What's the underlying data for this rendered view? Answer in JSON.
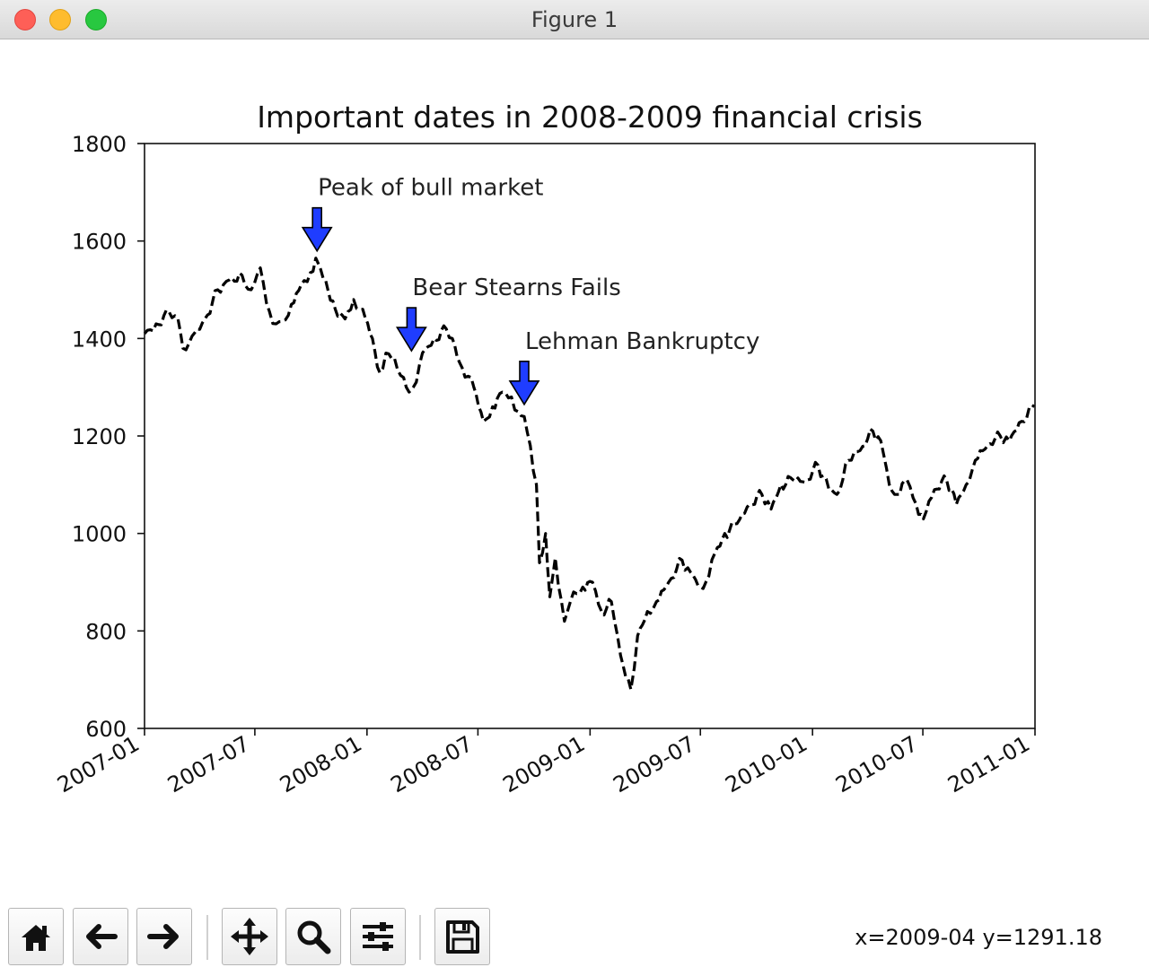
{
  "window": {
    "title": "Figure 1"
  },
  "chart_data": {
    "type": "line",
    "title": "Important dates in 2008-2009 financial crisis",
    "xlabel": "",
    "ylabel": "",
    "xlim": [
      "2007-01",
      "2011-01"
    ],
    "ylim": [
      600,
      1800
    ],
    "yticks": [
      600,
      800,
      1000,
      1200,
      1400,
      1600,
      1800
    ],
    "xticks": [
      "2007-01",
      "2007-07",
      "2008-01",
      "2008-07",
      "2009-01",
      "2009-07",
      "2010-01",
      "2010-07",
      "2011-01"
    ],
    "line_style": "dashed",
    "line_color": "#000000",
    "grid": false,
    "series": [
      {
        "x": [
          "2007-01-01",
          "2007-01-20",
          "2007-02-10",
          "2007-02-25",
          "2007-03-05",
          "2007-03-20",
          "2007-04-10",
          "2007-05-01",
          "2007-05-20",
          "2007-06-10",
          "2007-06-25",
          "2007-07-10",
          "2007-07-25",
          "2007-08-05",
          "2007-08-15",
          "2007-08-30",
          "2007-09-15",
          "2007-09-30",
          "2007-10-09",
          "2007-10-25",
          "2007-11-10",
          "2007-11-26",
          "2007-12-10",
          "2007-12-25",
          "2008-01-10",
          "2008-01-22",
          "2008-02-01",
          "2008-02-15",
          "2008-03-01",
          "2008-03-10",
          "2008-03-17",
          "2008-04-01",
          "2008-04-20",
          "2008-05-10",
          "2008-05-20",
          "2008-06-05",
          "2008-06-20",
          "2008-07-10",
          "2008-07-25",
          "2008-08-10",
          "2008-08-25",
          "2008-09-05",
          "2008-09-15",
          "2008-09-25",
          "2008-10-05",
          "2008-10-10",
          "2008-10-20",
          "2008-10-27",
          "2008-11-05",
          "2008-11-20",
          "2008-12-05",
          "2008-12-20",
          "2009-01-05",
          "2009-01-20",
          "2009-02-05",
          "2009-02-20",
          "2009-03-09",
          "2009-03-20",
          "2009-04-05",
          "2009-04-20",
          "2009-05-10",
          "2009-06-01",
          "2009-06-15",
          "2009-07-01",
          "2009-07-10",
          "2009-07-25",
          "2009-08-10",
          "2009-08-30",
          "2009-09-20",
          "2009-10-10",
          "2009-10-25",
          "2009-11-10",
          "2009-11-30",
          "2009-12-20",
          "2010-01-10",
          "2010-01-28",
          "2010-02-10",
          "2010-03-01",
          "2010-03-20",
          "2010-04-10",
          "2010-04-23",
          "2010-05-07",
          "2010-05-20",
          "2010-06-05",
          "2010-06-20",
          "2010-07-02",
          "2010-07-20",
          "2010-08-09",
          "2010-08-25",
          "2010-09-10",
          "2010-09-25",
          "2010-10-15",
          "2010-11-05",
          "2010-11-20",
          "2010-12-10",
          "2010-12-31"
        ],
        "values": [
          1410,
          1430,
          1455,
          1440,
          1380,
          1405,
          1440,
          1500,
          1520,
          1530,
          1500,
          1545,
          1455,
          1430,
          1435,
          1470,
          1510,
          1535,
          1565,
          1520,
          1460,
          1440,
          1480,
          1460,
          1400,
          1330,
          1370,
          1360,
          1320,
          1290,
          1300,
          1370,
          1400,
          1420,
          1400,
          1340,
          1320,
          1230,
          1260,
          1290,
          1280,
          1250,
          1240,
          1180,
          1100,
          940,
          1000,
          870,
          950,
          820,
          880,
          890,
          900,
          840,
          860,
          750,
          680,
          790,
          840,
          860,
          900,
          945,
          920,
          890,
          900,
          960,
          1000,
          1020,
          1060,
          1080,
          1050,
          1100,
          1110,
          1105,
          1140,
          1090,
          1080,
          1150,
          1170,
          1210,
          1190,
          1100,
          1080,
          1110,
          1060,
          1030,
          1090,
          1110,
          1060,
          1100,
          1150,
          1180,
          1200,
          1190,
          1230,
          1260
        ]
      }
    ],
    "annotations": [
      {
        "text": "Peak of bull market",
        "x": "2007-10-11",
        "y": 1565
      },
      {
        "text": "Bear Stearns Fails",
        "x": "2008-03-14",
        "y": 1360
      },
      {
        "text": "Lehman Bankruptcy",
        "x": "2008-09-15",
        "y": 1250
      }
    ],
    "arrow_color": "#1f3dff"
  },
  "toolbar": {
    "buttons": [
      {
        "name": "home-button",
        "icon": "home-icon"
      },
      {
        "name": "back-button",
        "icon": "arrow-left-icon"
      },
      {
        "name": "forward-button",
        "icon": "arrow-right-icon"
      },
      {
        "name": "pan-button",
        "icon": "move-icon"
      },
      {
        "name": "zoom-button",
        "icon": "magnifier-icon"
      },
      {
        "name": "configure-subplots-button",
        "icon": "sliders-icon"
      },
      {
        "name": "save-button",
        "icon": "floppy-disk-icon"
      }
    ],
    "coords": "x=2009-04 y=1291.18"
  }
}
